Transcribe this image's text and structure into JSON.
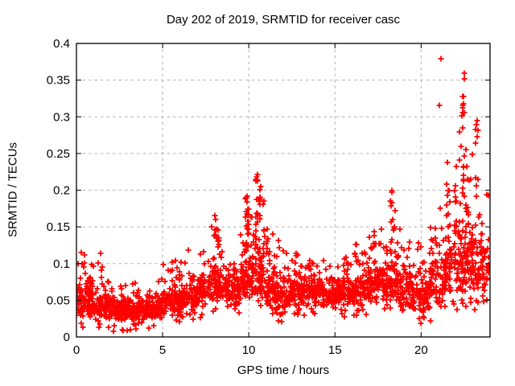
{
  "chart_data": {
    "type": "scatter",
    "title": "Day 202 of 2019, SRMTID for receiver casc",
    "xlabel": "GPS time / hours",
    "ylabel": "SRMTID / TECUs",
    "xlim": [
      0,
      24
    ],
    "ylim": [
      0,
      0.4
    ],
    "x_ticks": [
      0,
      5,
      10,
      15,
      20
    ],
    "y_ticks": [
      0,
      0.05,
      0.1,
      0.15,
      0.2,
      0.25,
      0.3,
      0.35,
      0.4
    ],
    "grid": "dashed",
    "legend": "none",
    "marker": "plus",
    "marker_color": "#ff0000",
    "marker_size_px": 7,
    "grid_color": "#b0b0b0",
    "border_color": "#000000",
    "background_color": "#ffffff",
    "seed": 42,
    "density_bins": [
      [
        0.0,
        0.5,
        55,
        0.025,
        0.055,
        0.115,
        0.1
      ],
      [
        0.5,
        1.0,
        55,
        0.028,
        0.055,
        0.1,
        0.08
      ],
      [
        1.0,
        1.7,
        65,
        0.02,
        0.05,
        0.115,
        0.07
      ],
      [
        1.7,
        2.5,
        75,
        0.02,
        0.042,
        0.08,
        0.06
      ],
      [
        2.5,
        4.0,
        140,
        0.022,
        0.035,
        0.075,
        0.06
      ],
      [
        4.0,
        5.0,
        95,
        0.024,
        0.038,
        0.09,
        0.05
      ],
      [
        5.0,
        6.0,
        95,
        0.028,
        0.047,
        0.105,
        0.08
      ],
      [
        6.0,
        7.0,
        95,
        0.032,
        0.05,
        0.115,
        0.08
      ],
      [
        7.0,
        7.8,
        75,
        0.04,
        0.052,
        0.13,
        0.09
      ],
      [
        7.8,
        8.7,
        85,
        0.045,
        0.06,
        0.155,
        0.1
      ],
      [
        8.7,
        9.5,
        80,
        0.042,
        0.055,
        0.125,
        0.08
      ],
      [
        9.5,
        10.2,
        75,
        0.048,
        0.075,
        0.19,
        0.12
      ],
      [
        10.2,
        10.9,
        75,
        0.05,
        0.085,
        0.215,
        0.12
      ],
      [
        10.9,
        11.5,
        55,
        0.04,
        0.07,
        0.15,
        0.1
      ],
      [
        11.5,
        12.2,
        65,
        0.028,
        0.06,
        0.12,
        0.07
      ],
      [
        12.2,
        13.2,
        95,
        0.04,
        0.052,
        0.115,
        0.07
      ],
      [
        13.2,
        14.2,
        95,
        0.042,
        0.05,
        0.11,
        0.07
      ],
      [
        14.2,
        15.5,
        120,
        0.04,
        0.048,
        0.105,
        0.06
      ],
      [
        15.5,
        16.5,
        95,
        0.04,
        0.052,
        0.13,
        0.08
      ],
      [
        16.5,
        17.5,
        95,
        0.045,
        0.058,
        0.155,
        0.09
      ],
      [
        17.5,
        18.6,
        105,
        0.048,
        0.065,
        0.185,
        0.1
      ],
      [
        18.6,
        19.5,
        85,
        0.04,
        0.062,
        0.15,
        0.09
      ],
      [
        19.5,
        20.5,
        85,
        0.03,
        0.07,
        0.14,
        0.08
      ],
      [
        20.5,
        21.3,
        75,
        0.04,
        0.08,
        0.175,
        0.1
      ],
      [
        21.3,
        22.2,
        85,
        0.05,
        0.1,
        0.24,
        0.12
      ],
      [
        22.2,
        23.0,
        100,
        0.055,
        0.12,
        0.28,
        0.14
      ],
      [
        23.0,
        23.6,
        55,
        0.05,
        0.1,
        0.24,
        0.12
      ],
      [
        23.6,
        23.95,
        25,
        0.055,
        0.09,
        0.2,
        0.1
      ]
    ],
    "plumes": [
      [
        8.0,
        8,
        0.09,
        0.165
      ],
      [
        8.25,
        5,
        0.09,
        0.135
      ],
      [
        9.85,
        10,
        0.1,
        0.19
      ],
      [
        9.95,
        8,
        0.12,
        0.175
      ],
      [
        10.45,
        12,
        0.1,
        0.22
      ],
      [
        10.65,
        10,
        0.12,
        0.205
      ],
      [
        11.05,
        6,
        0.1,
        0.15
      ],
      [
        16.2,
        5,
        0.1,
        0.135
      ],
      [
        17.3,
        6,
        0.1,
        0.155
      ],
      [
        18.3,
        8,
        0.11,
        0.197
      ],
      [
        18.45,
        5,
        0.1,
        0.175
      ],
      [
        21.6,
        7,
        0.13,
        0.22
      ],
      [
        22.0,
        6,
        0.13,
        0.21
      ],
      [
        22.45,
        9,
        0.27,
        0.36
      ],
      [
        22.45,
        8,
        0.18,
        0.25
      ],
      [
        22.7,
        6,
        0.14,
        0.22
      ],
      [
        23.2,
        6,
        0.18,
        0.3
      ],
      [
        23.5,
        6,
        0.09,
        0.16
      ]
    ],
    "outlier_points": [
      [
        21.17,
        0.379
      ],
      [
        21.08,
        0.316
      ],
      [
        22.38,
        0.301
      ],
      [
        22.5,
        0.359
      ],
      [
        0.3,
        0.115
      ],
      [
        0.35,
        0.1
      ],
      [
        1.4,
        0.114
      ],
      [
        1.25,
        0.101
      ],
      [
        5.75,
        0.104
      ],
      [
        6.5,
        0.118
      ],
      [
        8.02,
        0.166
      ],
      [
        9.9,
        0.192
      ],
      [
        10.5,
        0.221
      ],
      [
        11.7,
        0.131
      ],
      [
        11.78,
        0.122
      ],
      [
        18.32,
        0.2
      ],
      [
        18.2,
        0.185
      ],
      [
        23.25,
        0.295
      ],
      [
        23.3,
        0.282
      ],
      [
        20.55,
        0.022
      ],
      [
        1.3,
        0.013
      ],
      [
        3.4,
        0.016
      ],
      [
        11.9,
        0.021
      ],
      [
        23.8,
        0.05
      ]
    ]
  }
}
